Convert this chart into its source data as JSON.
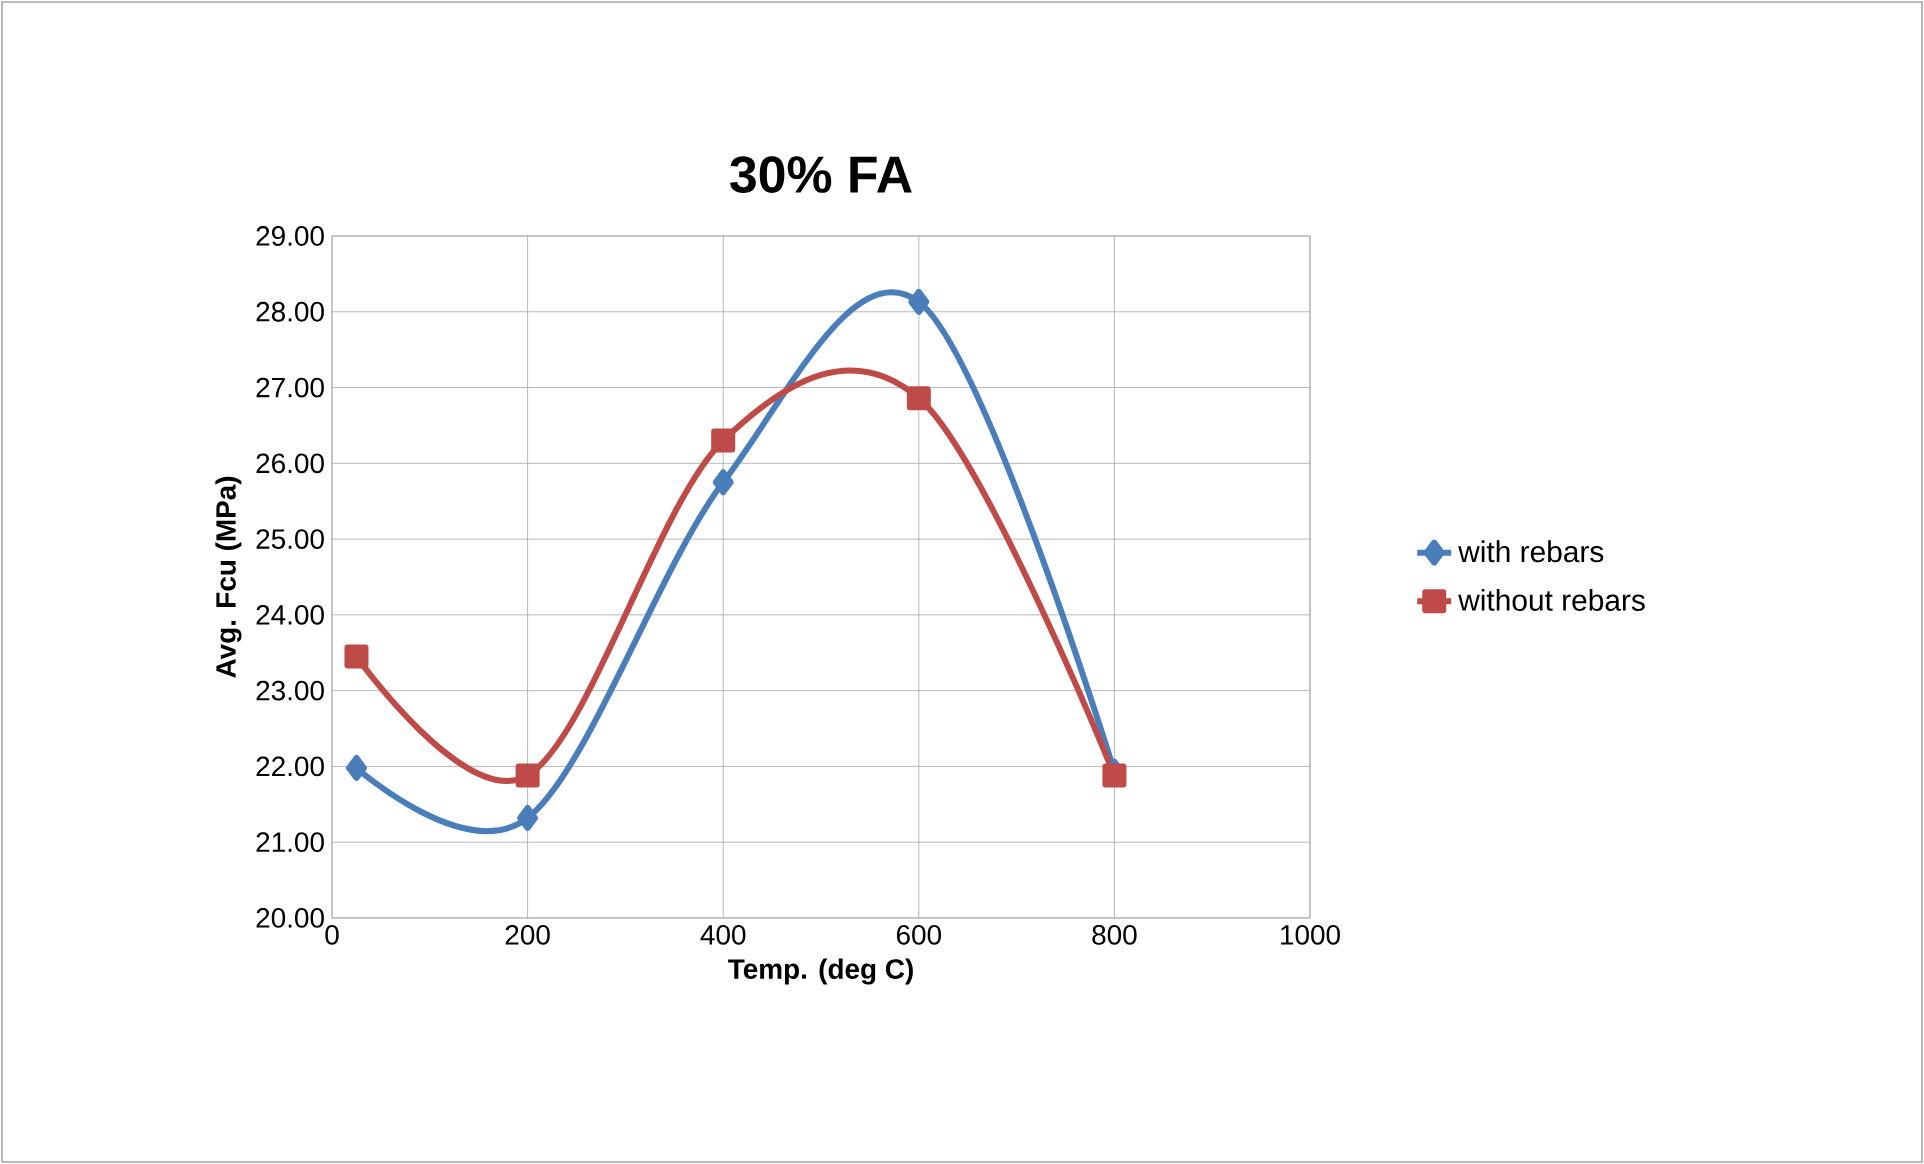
{
  "chart_data": {
    "type": "line",
    "title": "30% FA",
    "xlabel": "Temp. (deg C)",
    "ylabel": "Avg. Fcu (MPa)",
    "x": [
      25,
      200,
      400,
      600,
      800
    ],
    "series": [
      {
        "name": "with rebars",
        "color": "#4a7ebb",
        "marker": "diamond",
        "values": [
          21.98,
          21.32,
          25.75,
          28.13,
          21.93
        ]
      },
      {
        "name": "without rebars",
        "color": "#be4b48",
        "marker": "square",
        "values": [
          23.45,
          21.88,
          26.3,
          26.86,
          21.88
        ]
      }
    ],
    "xlim": [
      0,
      1000
    ],
    "xticks": [
      0,
      200,
      400,
      600,
      800,
      1000
    ],
    "ylim": [
      20,
      29
    ],
    "yticks": [
      {
        "value": 20,
        "label": "20.00"
      },
      {
        "value": 21,
        "label": "21.00"
      },
      {
        "value": 22,
        "label": "22.00"
      },
      {
        "value": 23,
        "label": "23.00"
      },
      {
        "value": 24,
        "label": "24.00"
      },
      {
        "value": 25,
        "label": "25.00"
      },
      {
        "value": 26,
        "label": "26.00"
      },
      {
        "value": 27,
        "label": "27.00"
      },
      {
        "value": 28,
        "label": "28.00"
      },
      {
        "value": 29,
        "label": "29.00"
      }
    ],
    "grid": true,
    "legend": "right"
  }
}
